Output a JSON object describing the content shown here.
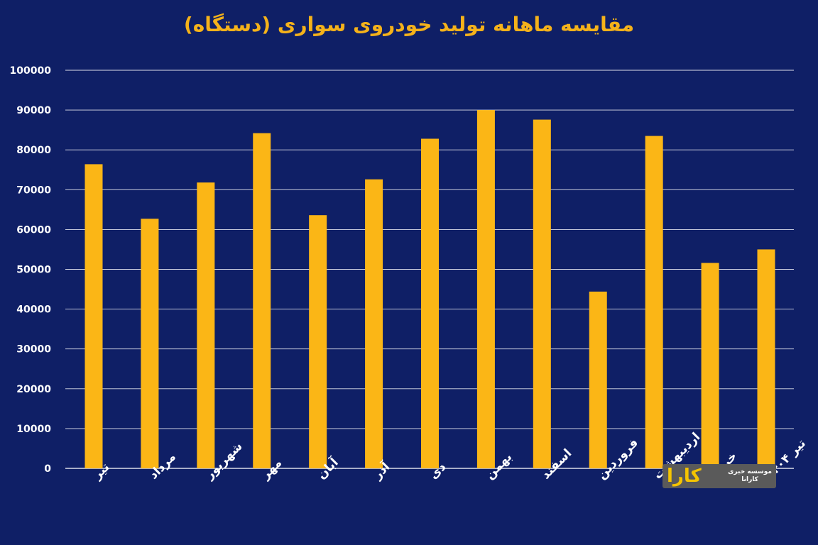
{
  "chart_data": {
    "type": "bar",
    "title": "مقایسه ماهانه تولید خودروی سواری (دستگاه)",
    "xlabel": "",
    "ylabel": "",
    "ylim": [
      0,
      100000
    ],
    "yticks": [
      "0",
      "10000",
      "20000",
      "30000",
      "40000",
      "50000",
      "60000",
      "70000",
      "80000",
      "90000",
      "100000"
    ],
    "grid": true,
    "categories": [
      "تیر",
      "مرداد",
      "شهریور",
      "مهر",
      "آبان",
      "آذر",
      "دی",
      "بهمن",
      "اسفند",
      "فروردین",
      "اردیبهشت",
      "خرداد",
      "تیر ۱۴۰۴"
    ],
    "values": [
      76400,
      62700,
      71800,
      84200,
      63600,
      72600,
      82800,
      90000,
      87600,
      44400,
      83500,
      51600,
      55000
    ],
    "colors": {
      "background": "#0f1f66",
      "bar": "#fbb616",
      "title": "#f5b21a",
      "grid": "#ffffff",
      "text": "#ffffff"
    }
  },
  "logo": {
    "mark": "کارا",
    "line1": "موسسه خبری",
    "line2": "کارانا"
  }
}
